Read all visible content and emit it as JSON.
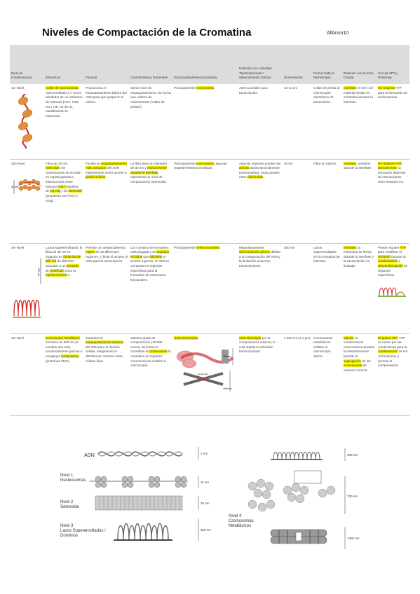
{
  "document": {
    "title": "Niveles de Compactación de la Cromatina",
    "author": "Alfonso10"
  },
  "table": {
    "headers": [
      "Nivel de Condensación",
      "Estructura",
      "Función",
      "Características Generales",
      "Eucromatina/Heterocromatina",
      "Relación con Actividad Transcripcional o Silenciamiento Génico",
      "Dimensiones",
      "Forma Vista al Microscopio",
      "Relación con el Ciclo Celular",
      "Uso de ATP y Proteínas"
    ],
    "rows": [
      {
        "level": "1er Nivel",
        "structure": [
          "Collar de nucleosomas",
          ": ADN enrollado 1,7 veces alrededor de un octámero de histonas (H2A, H2B, H3 y H4) con la H1 estabilizando la estructura."
        ],
        "function": "Proporciona el empaquetamiento básico del ADN para que quepa en el núcleo.",
        "features": "Menor nivel de empaquetamiento. Se forma una cadena de nucleosomas (“collar de perlas”).",
        "chromatin": [
          "Principalmente ",
          "eucromatina",
          "."
        ],
        "transcription": "ADN accesible para transcripción.",
        "dimensions": "10-11 nm",
        "microscope": "Collar de perlas al microscopio electrónico de transmisión.",
        "cycle": [
          "Interfase",
          ": el 10% del material celular es cromatina durante la interfase."
        ],
        "atp": [
          "No requiere",
          " ATP para la formación de nucleosomas."
        ]
      },
      {
        "level": "2do Nivel",
        "structure": [
          "Fibra de 30 nm: ",
          "solenoide",
          ", los nucleosomas se enrollan en espiral gracias a interacciones entre histonas ",
          "(H1). ",
          "Modelos ",
          "de ",
          "zig-zag",
          " y de ",
          "solenoide",
          " (propuesto por Finch y Klug)."
        ],
        "function": [
          "Facilita un ",
          "empaquetamiento más compacto",
          " del ADN manteniendo cierto acceso a ",
          "genes activos",
          "."
        ],
        "features": [
          "La fibra tiene un diámetro de 30 nm y ",
          "está presente durante la interfase",
          ", representa un nivel de compactación intermedio."
        ],
        "chromatin": [
          "Principalmente ",
          "eucromatina",
          ", algunas regiones heterocromáticas."
        ],
        "transcription": [
          "Algunas regiones pueden ser ",
          "activas",
          " transcripcionalmente (eucromatina), otras pueden estar ",
          "silenciadas",
          "."
        ],
        "dimensions": "30 nm",
        "microscope": "Fibra en espiral.",
        "cycle": [
          "Interfase",
          ": presente durante la interfase."
        ],
        "atp": [
          "No requiere ATP directamente",
          ", la formación depende de interacciones entre histonas H1."
        ]
      },
      {
        "level": "3er Nivel",
        "structure": [
          "Lazos superenrollados: la fibra de 30 nm se organiza en ",
          "dominios de 300 nm",
          " de diámetro anclados a un ",
          "armazón",
          " de ",
          "proteínas",
          " como la ",
          "topoisomerasa",
          " II."
        ],
        "function": [
          "Permite un compactamiento ",
          "mayor",
          " de las diferentes regiones, y limita el acceso al ADN para la transcripción."
        ],
        "features": [
          "La cromatina se encuentra más plegada y se ",
          "organiza en lazos",
          " que ",
          "dificultan",
          " el acceso a genes, el ADN se compacta en regiones específicas para la formación de estructuras funcionales."
        ],
        "chromatin": [
          "Principalmente ",
          "heterocromatina",
          "."
        ],
        "transcription": [
          "Mayoritariamente ",
          "silenciamiento génico",
          " debido a la compactación del ADN y la limitación al acceso transcripcional."
        ],
        "dimensions": "300 nm",
        "microscope": "Lazos superenrollados en la cromatina de interfase.",
        "cycle": [
          "Interfase",
          ": la estructura se forma durante la interfase y la transcripción es limitada."
        ],
        "atp": [
          "Puede requerir ",
          "ATP",
          " para modificar el ",
          "armazón",
          " durante la ",
          "condensación",
          " y ",
          "descondensación",
          " de regiones específicas."
        ]
      },
      {
        "level": "4to Nivel",
        "structure": [
          "Cromosoma ",
          "metafásico",
          ": los lazos de 300 nm se enrollan aún más, condensándose gracias a complejos ",
          "condensinas",
          " (proteínas SMC)."
        ],
        "function": [
          "Garantiza el ",
          "empaquetamiento máximo",
          " del ADN para la división celular, asegurando la distribución correcta entre células hijas."
        ],
        "features": [
          "Máximo grado de compactación (10.000 veces). Se forma la cromátida al ",
          "condensarse",
          " la cromatina en regiones cromosómicas visibles al microscopio."
        ],
        "chromatin": [
          "",
          "Heterocromatina",
          "."
        ],
        "transcription": [
          "",
          "ADN silenciado",
          " por la compactación máxima, lo cual impide la actividad transcripcional."
        ],
        "dimensions": "1.400 nm (1,4 µm)",
        "microscope": "Cromosomas metafásicos visibles al microscopio óptico.",
        "cycle": [
          "",
          "Mitosis",
          ": la condensación cromosómica durante la mitosis/meiosis permite la ",
          "segregación",
          " de los ",
          "cromosomas",
          " de manera correcta."
        ],
        "atp": [
          "Requiere ATP",
          ", ATP es usado por las condensinas para la ",
          "condensación",
          " de los cromosomas y permite la compactación."
        ]
      }
    ]
  },
  "figure_left": {
    "labels": {
      "dna": "ADN",
      "level1": "Nivel 1\nNucleosomas",
      "level2": "Nivel 2\nSolenoide",
      "level3": "Nivel 3\nLazos Superenrollados /\nDominios"
    },
    "scale": [
      "2 nm",
      "11 nm",
      "30 nm",
      "300 nm"
    ]
  },
  "figure_right": {
    "labels": {
      "level4": "Nivel 4\nCromosomas\nMetafásicos"
    },
    "scale": [
      "300 nm",
      "700 nm",
      "1400 nm"
    ]
  },
  "row_figures": {
    "r2_scale": "30 nm",
    "r3_scale": "300 nm",
    "r4_scale_a": "700 nm",
    "r4_scale_b": "1400 nm",
    "r4_caption": "centrómero"
  },
  "colors": {
    "highlight": "#f3f300",
    "header_bg": "#dcdcdc",
    "nucleosome": "#e0903a",
    "dna_red": "#d22020"
  }
}
